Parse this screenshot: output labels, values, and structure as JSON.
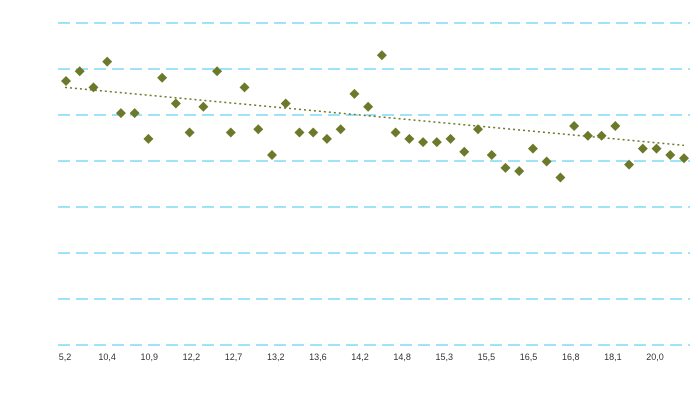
{
  "chart_data": {
    "type": "scatter",
    "title": "",
    "xlabel": "",
    "ylabel": "",
    "x_tick_labels": [
      "5,2",
      "10,4",
      "10,9",
      "12,2",
      "12,7",
      "13,2",
      "13,6",
      "14,2",
      "14,8",
      "15,3",
      "15,5",
      "16,5",
      "16,8",
      "18,1",
      "20,0"
    ],
    "grid": true,
    "gridlines": 8,
    "trendline": {
      "type": "linear",
      "style": "dotted",
      "from": 0.8,
      "to": 0.62
    },
    "series": [
      {
        "marker": "diamond",
        "color": "#6b7a2a",
        "values": [
          0.82,
          0.85,
          0.8,
          0.88,
          0.72,
          0.72,
          0.64,
          0.83,
          0.75,
          0.66,
          0.74,
          0.85,
          0.66,
          0.8,
          0.67,
          0.59,
          0.75,
          0.66,
          0.66,
          0.64,
          0.67,
          0.78,
          0.74,
          0.9,
          0.66,
          0.64,
          0.63,
          0.63,
          0.64,
          0.6,
          0.67,
          0.59,
          0.55,
          0.54,
          0.61,
          0.57,
          0.52,
          0.68,
          0.65,
          0.65,
          0.68,
          0.56,
          0.61,
          0.61,
          0.59,
          0.58
        ]
      }
    ],
    "colors": {
      "grid": "#40c4f0",
      "trend": "#6b7a2a",
      "marker": "#6b7a2a"
    }
  }
}
